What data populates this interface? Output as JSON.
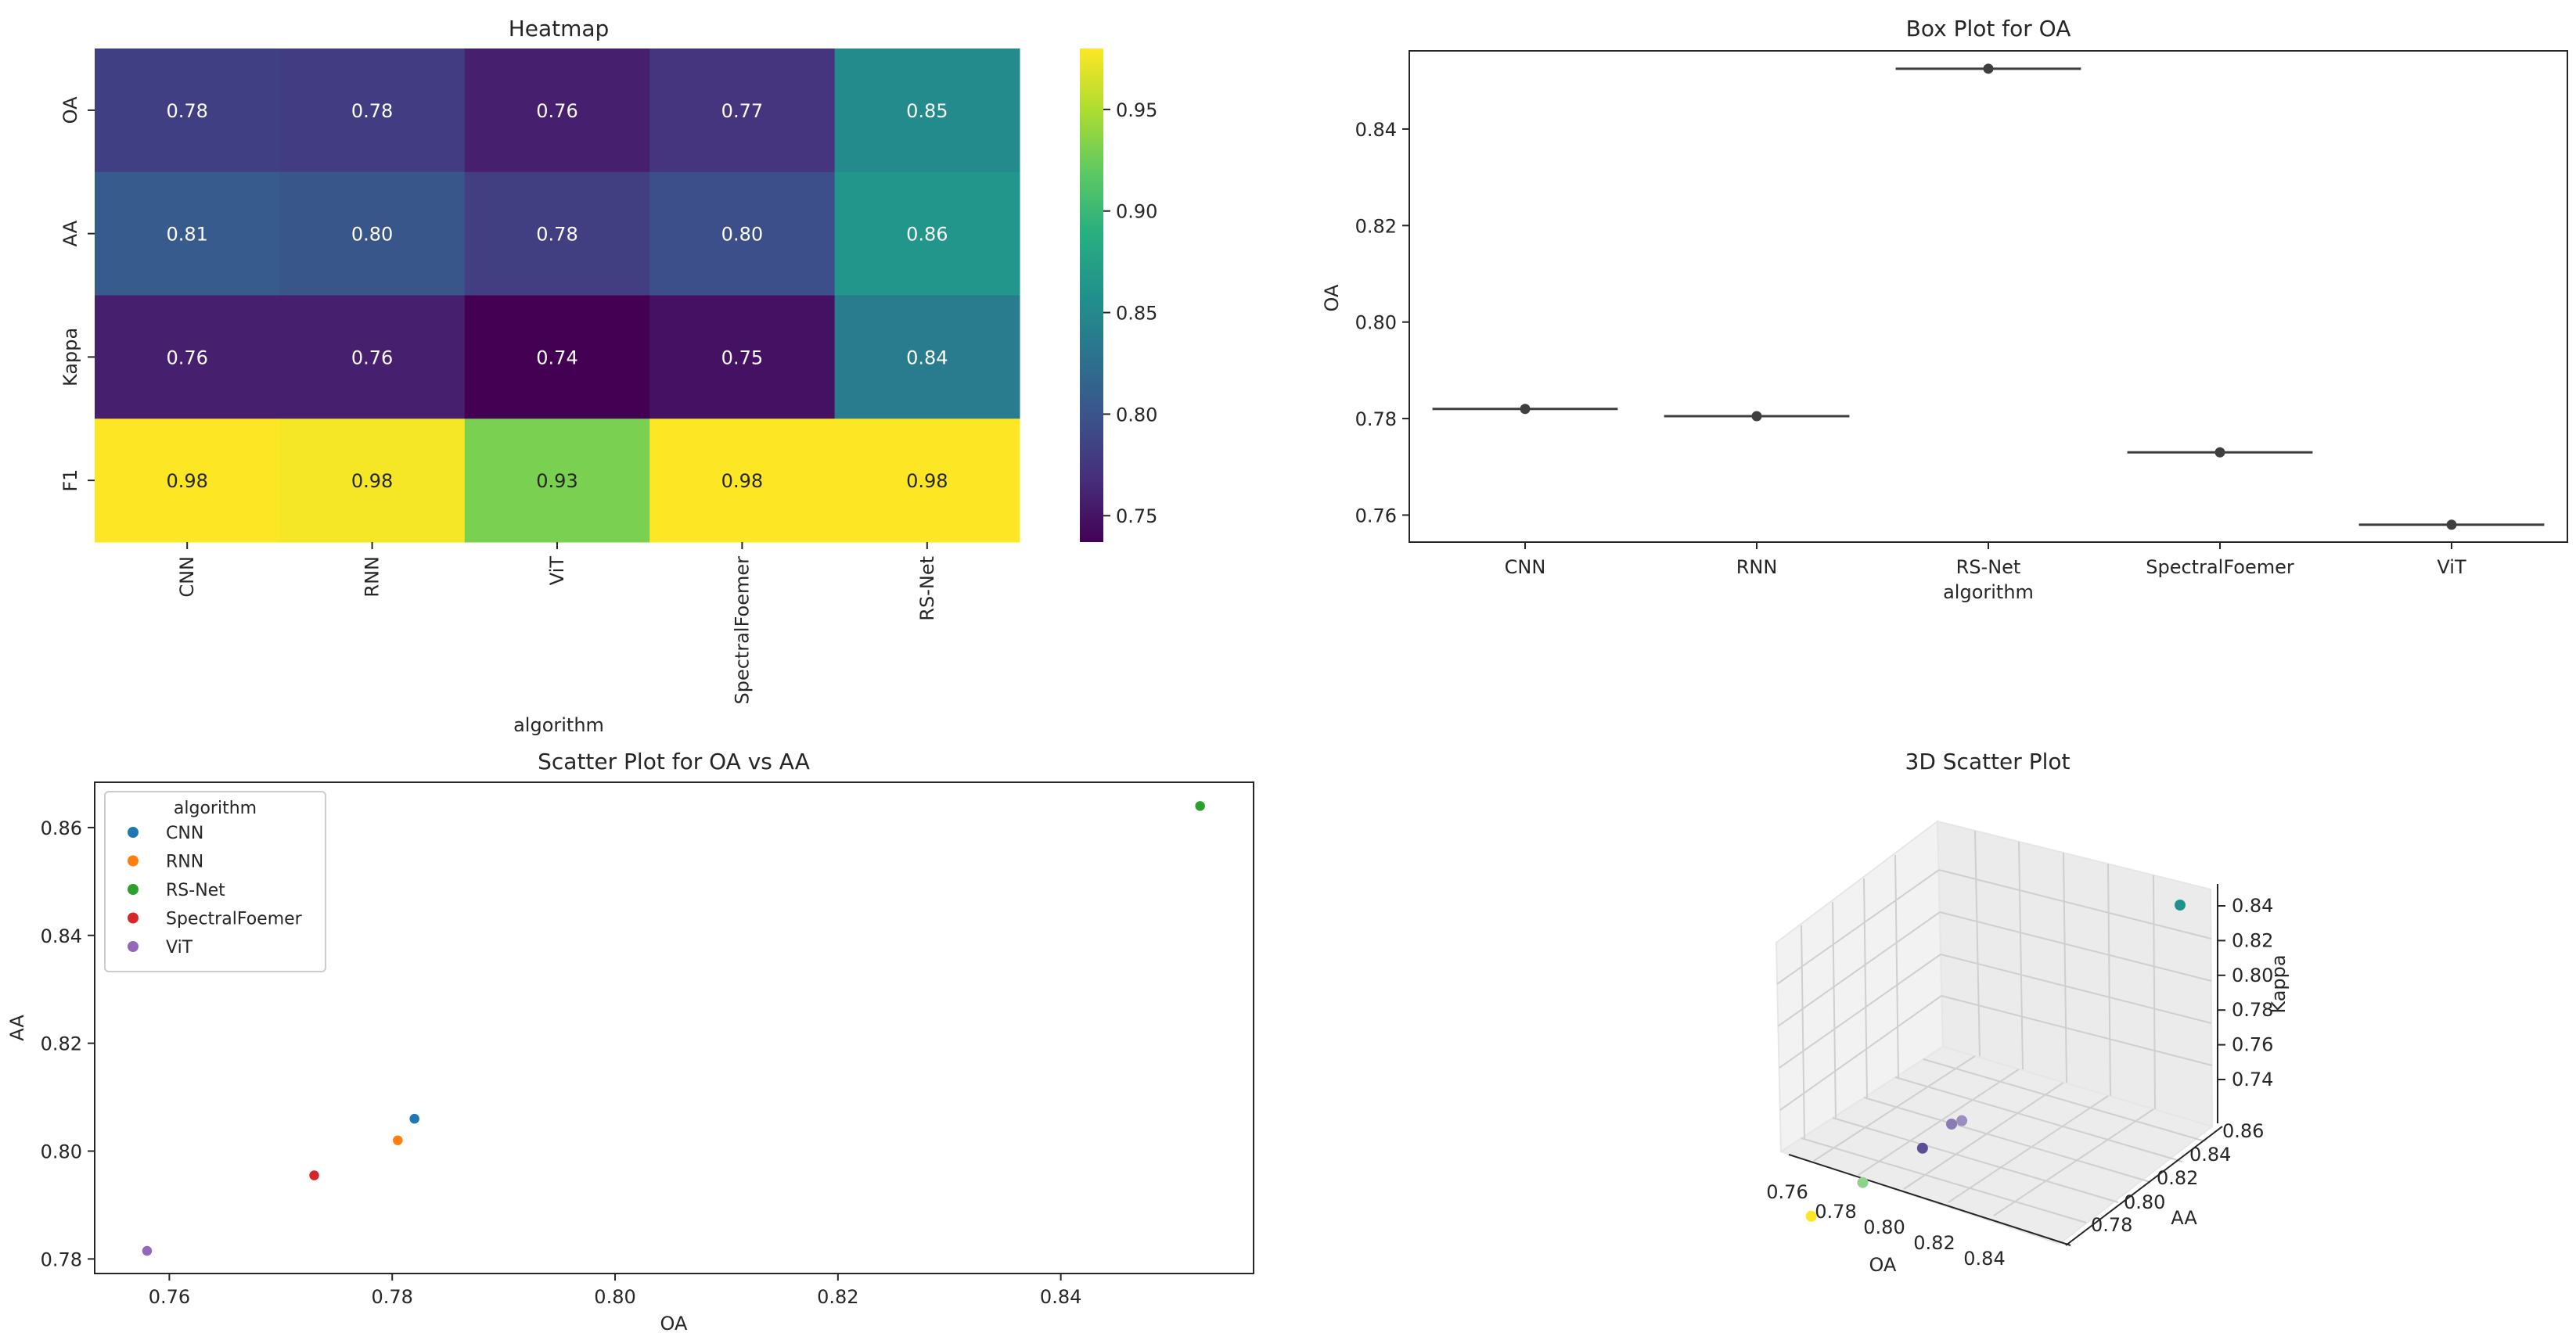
{
  "chart_data": [
    {
      "type": "heatmap",
      "title": "Heatmap",
      "xlabel": "algorithm",
      "ylabel": "",
      "rows": [
        "OA",
        "AA",
        "Kappa",
        "F1"
      ],
      "columns": [
        "CNN",
        "RNN",
        "ViT",
        "SpectralFoemer",
        "RS-Net"
      ],
      "values": [
        [
          0.782,
          0.7805,
          0.758,
          0.773,
          0.8525
        ],
        [
          0.806,
          0.802,
          0.7815,
          0.7955,
          0.864
        ],
        [
          0.758,
          0.758,
          0.737,
          0.749,
          0.838
        ],
        [
          0.98,
          0.977,
          0.93,
          0.98,
          0.98
        ]
      ],
      "labels": [
        [
          "0.78",
          "0.78",
          "0.76",
          "0.77",
          "0.85"
        ],
        [
          "0.81",
          "0.80",
          "0.78",
          "0.80",
          "0.86"
        ],
        [
          "0.76",
          "0.76",
          "0.74",
          "0.75",
          "0.84"
        ],
        [
          "0.98",
          "0.98",
          "0.93",
          "0.98",
          "0.98"
        ]
      ],
      "colorbar": {
        "range": [
          0.737,
          0.98
        ],
        "ticks": [
          "0.75",
          "0.80",
          "0.85",
          "0.90",
          "0.95"
        ]
      },
      "colormap": "viridis"
    },
    {
      "type": "box",
      "title": "Box Plot for OA",
      "xlabel": "algorithm",
      "ylabel": "OA",
      "categories": [
        "CNN",
        "RNN",
        "RS-Net",
        "SpectralFoemer",
        "ViT"
      ],
      "values": [
        0.782,
        0.7805,
        0.8525,
        0.773,
        0.758
      ],
      "ylim": [
        0.7544,
        0.8562
      ],
      "yticks": [
        "0.76",
        "0.78",
        "0.80",
        "0.82",
        "0.84"
      ]
    },
    {
      "type": "scatter",
      "title": "Scatter Plot for OA vs AA",
      "xlabel": "OA",
      "ylabel": "AA",
      "xlim": [
        0.7533,
        0.8573
      ],
      "ylim": [
        0.7773,
        0.8684
      ],
      "xticks": [
        "0.76",
        "0.78",
        "0.80",
        "0.82",
        "0.84"
      ],
      "yticks": [
        "0.78",
        "0.80",
        "0.82",
        "0.84",
        "0.86"
      ],
      "legend": {
        "title": "algorithm",
        "placement": "top-left",
        "entries": [
          "CNN",
          "RNN",
          "RS-Net",
          "SpectralFoemer",
          "ViT"
        ]
      },
      "series": [
        {
          "name": "CNN",
          "color": "#1f77b4",
          "x": 0.782,
          "y": 0.806
        },
        {
          "name": "RNN",
          "color": "#ff7f0e",
          "x": 0.7805,
          "y": 0.802
        },
        {
          "name": "RS-Net",
          "color": "#2ca02c",
          "x": 0.8525,
          "y": 0.864
        },
        {
          "name": "SpectralFoemer",
          "color": "#d62728",
          "x": 0.773,
          "y": 0.7955
        },
        {
          "name": "ViT",
          "color": "#9467bd",
          "x": 0.758,
          "y": 0.7815
        }
      ]
    },
    {
      "type": "scatter3d",
      "title": "3D Scatter Plot",
      "xlabel": "OA",
      "ylabel": "AA",
      "zlabel": "Kappa",
      "xticks": [
        "0.76",
        "0.78",
        "0.80",
        "0.82",
        "0.84"
      ],
      "yticks": [
        "0.78",
        "0.80",
        "0.82",
        "0.84",
        "0.86"
      ],
      "zticks": [
        "0.74",
        "0.76",
        "0.78",
        "0.80",
        "0.82",
        "0.84"
      ],
      "points": [
        {
          "oa": 0.8525,
          "aa": 0.864,
          "kappa": 0.838,
          "color": "#21918c"
        },
        {
          "oa": 0.782,
          "aa": 0.806,
          "kappa": 0.758,
          "color": "#9b8fc0"
        },
        {
          "oa": 0.7805,
          "aa": 0.802,
          "kappa": 0.758,
          "color": "#8a7bb5"
        },
        {
          "oa": 0.773,
          "aa": 0.7955,
          "kappa": 0.749,
          "color": "#5c4f96"
        },
        {
          "oa": 0.758,
          "aa": 0.7815,
          "kappa": 0.737,
          "color": "#8fd28a"
        },
        {
          "oa": 0.742,
          "aa": 0.774,
          "kappa": 0.722,
          "color": "#fde725"
        }
      ]
    }
  ]
}
